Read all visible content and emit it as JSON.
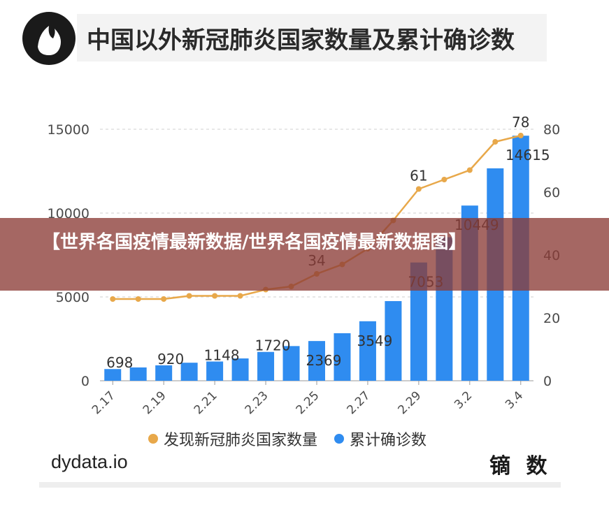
{
  "header": {
    "title": "中国以外新冠肺炎国家数量及累计确诊数"
  },
  "chart_data": {
    "type": "bar",
    "categories": [
      "2.17",
      "2.18",
      "2.19",
      "2.20",
      "2.21",
      "2.22",
      "2.23",
      "2.24",
      "2.25",
      "2.26",
      "2.27",
      "2.28",
      "2.29",
      "3.1",
      "3.2",
      "3.3",
      "3.4"
    ],
    "x_tick_labels": [
      "2.17",
      "2.19",
      "2.21",
      "2.23",
      "2.25",
      "2.27",
      "2.29",
      "3.2",
      "3.4"
    ],
    "series": [
      {
        "name": "累计确诊数",
        "type": "bar",
        "axis": "left",
        "color": "#2f8cf0",
        "values": [
          698,
          794,
          920,
          1076,
          1148,
          1331,
          1720,
          2069,
          2369,
          2835,
          3549,
          4751,
          7053,
          8561,
          10449,
          12668,
          14615
        ]
      },
      {
        "name": "发现新冠肺炎国家数量",
        "type": "line",
        "axis": "right",
        "color": "#e8a84a",
        "values": [
          26,
          26,
          26,
          27,
          27,
          27,
          29,
          30,
          34,
          37,
          42,
          51,
          61,
          64,
          67,
          76,
          78
        ]
      }
    ],
    "data_labels": [
      {
        "series": 0,
        "index": 0,
        "text": "698"
      },
      {
        "series": 0,
        "index": 2,
        "text": "920"
      },
      {
        "series": 0,
        "index": 4,
        "text": "1148"
      },
      {
        "series": 0,
        "index": 6,
        "text": "1720"
      },
      {
        "series": 0,
        "index": 8,
        "text": "2369"
      },
      {
        "series": 0,
        "index": 10,
        "text": "3549"
      },
      {
        "series": 0,
        "index": 12,
        "text": "7053"
      },
      {
        "series": 0,
        "index": 14,
        "text": "10449"
      },
      {
        "series": 0,
        "index": 16,
        "text": "14615"
      },
      {
        "series": 1,
        "index": 8,
        "text": "34"
      },
      {
        "series": 1,
        "index": 12,
        "text": "61"
      },
      {
        "series": 1,
        "index": 16,
        "text": "78"
      }
    ],
    "y_left": {
      "ticks": [
        "0",
        "5000",
        "10000",
        "15000"
      ],
      "ylim": [
        0,
        15000
      ]
    },
    "y_right": {
      "ticks": [
        "0",
        "20",
        "40",
        "60",
        "80"
      ],
      "ylim": [
        0,
        80
      ]
    },
    "grid": true,
    "legend": "bottom"
  },
  "legend": {
    "line_label": "发现新冠肺炎国家数量",
    "bar_label": "累计确诊数"
  },
  "footer": {
    "source": "dydata.io",
    "brand": "镝 数"
  },
  "banner": {
    "text": "【世界各国疫情最新数据/世界各国疫情最新数据图】"
  }
}
